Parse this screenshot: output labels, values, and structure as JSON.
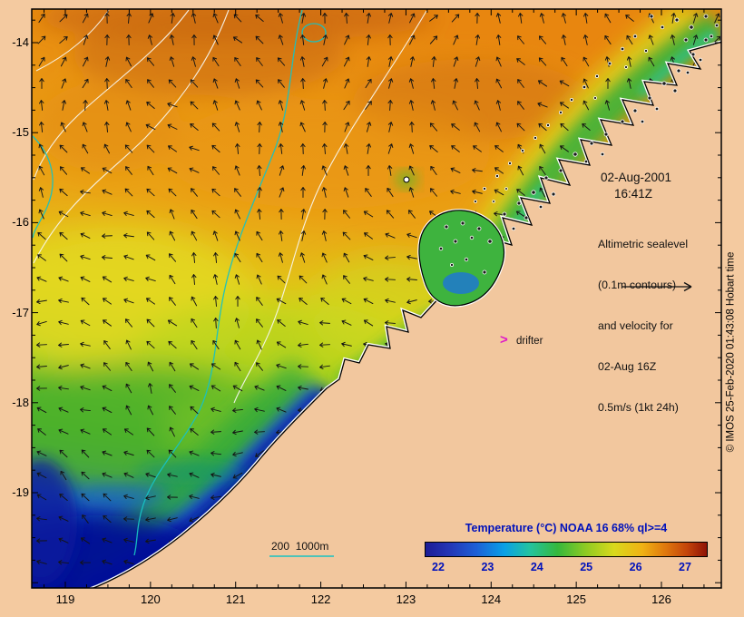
{
  "axes": {
    "x_tick_labels": [
      "119",
      "120",
      "121",
      "122",
      "123",
      "124",
      "125",
      "126"
    ],
    "y_tick_labels": [
      "-14",
      "-15",
      "-16",
      "-17",
      "-18",
      "-19"
    ]
  },
  "annotations": {
    "obs_date": "02-Aug-2001",
    "obs_time": "16:41Z",
    "info_lines": [
      "Altimetric sealevel",
      "(0.1m contours)",
      "and velocity for",
      "02-Aug 16Z",
      "0.5m/s (1kt 24h)"
    ],
    "drifter_marker": ">",
    "drifter_label": "drifter",
    "depth_legend": "200  1000m",
    "credit": "© IMOS 25-Feb-2020 01:43:08 Hobart time"
  },
  "colorbar": {
    "title": "Temperature (°C) NOAA 16 68% ql>=4",
    "tick_labels": [
      "22",
      "23",
      "24",
      "25",
      "26",
      "27"
    ],
    "min": 22,
    "max": 27,
    "title_color": "#0011bb"
  },
  "palette": {
    "land": "#f4caa0",
    "sst_warm": "#e8860f",
    "sst_yellow": "#dfd81c",
    "sst_green": "#46ae2c",
    "sst_cold_navy": "#041197",
    "sealevel_contour_white": "#f8f8f2",
    "bathymetry_contour_cyan": "#18c2c2",
    "drifter_magenta": "#e018c8",
    "label_blue": "#0011bb"
  }
}
